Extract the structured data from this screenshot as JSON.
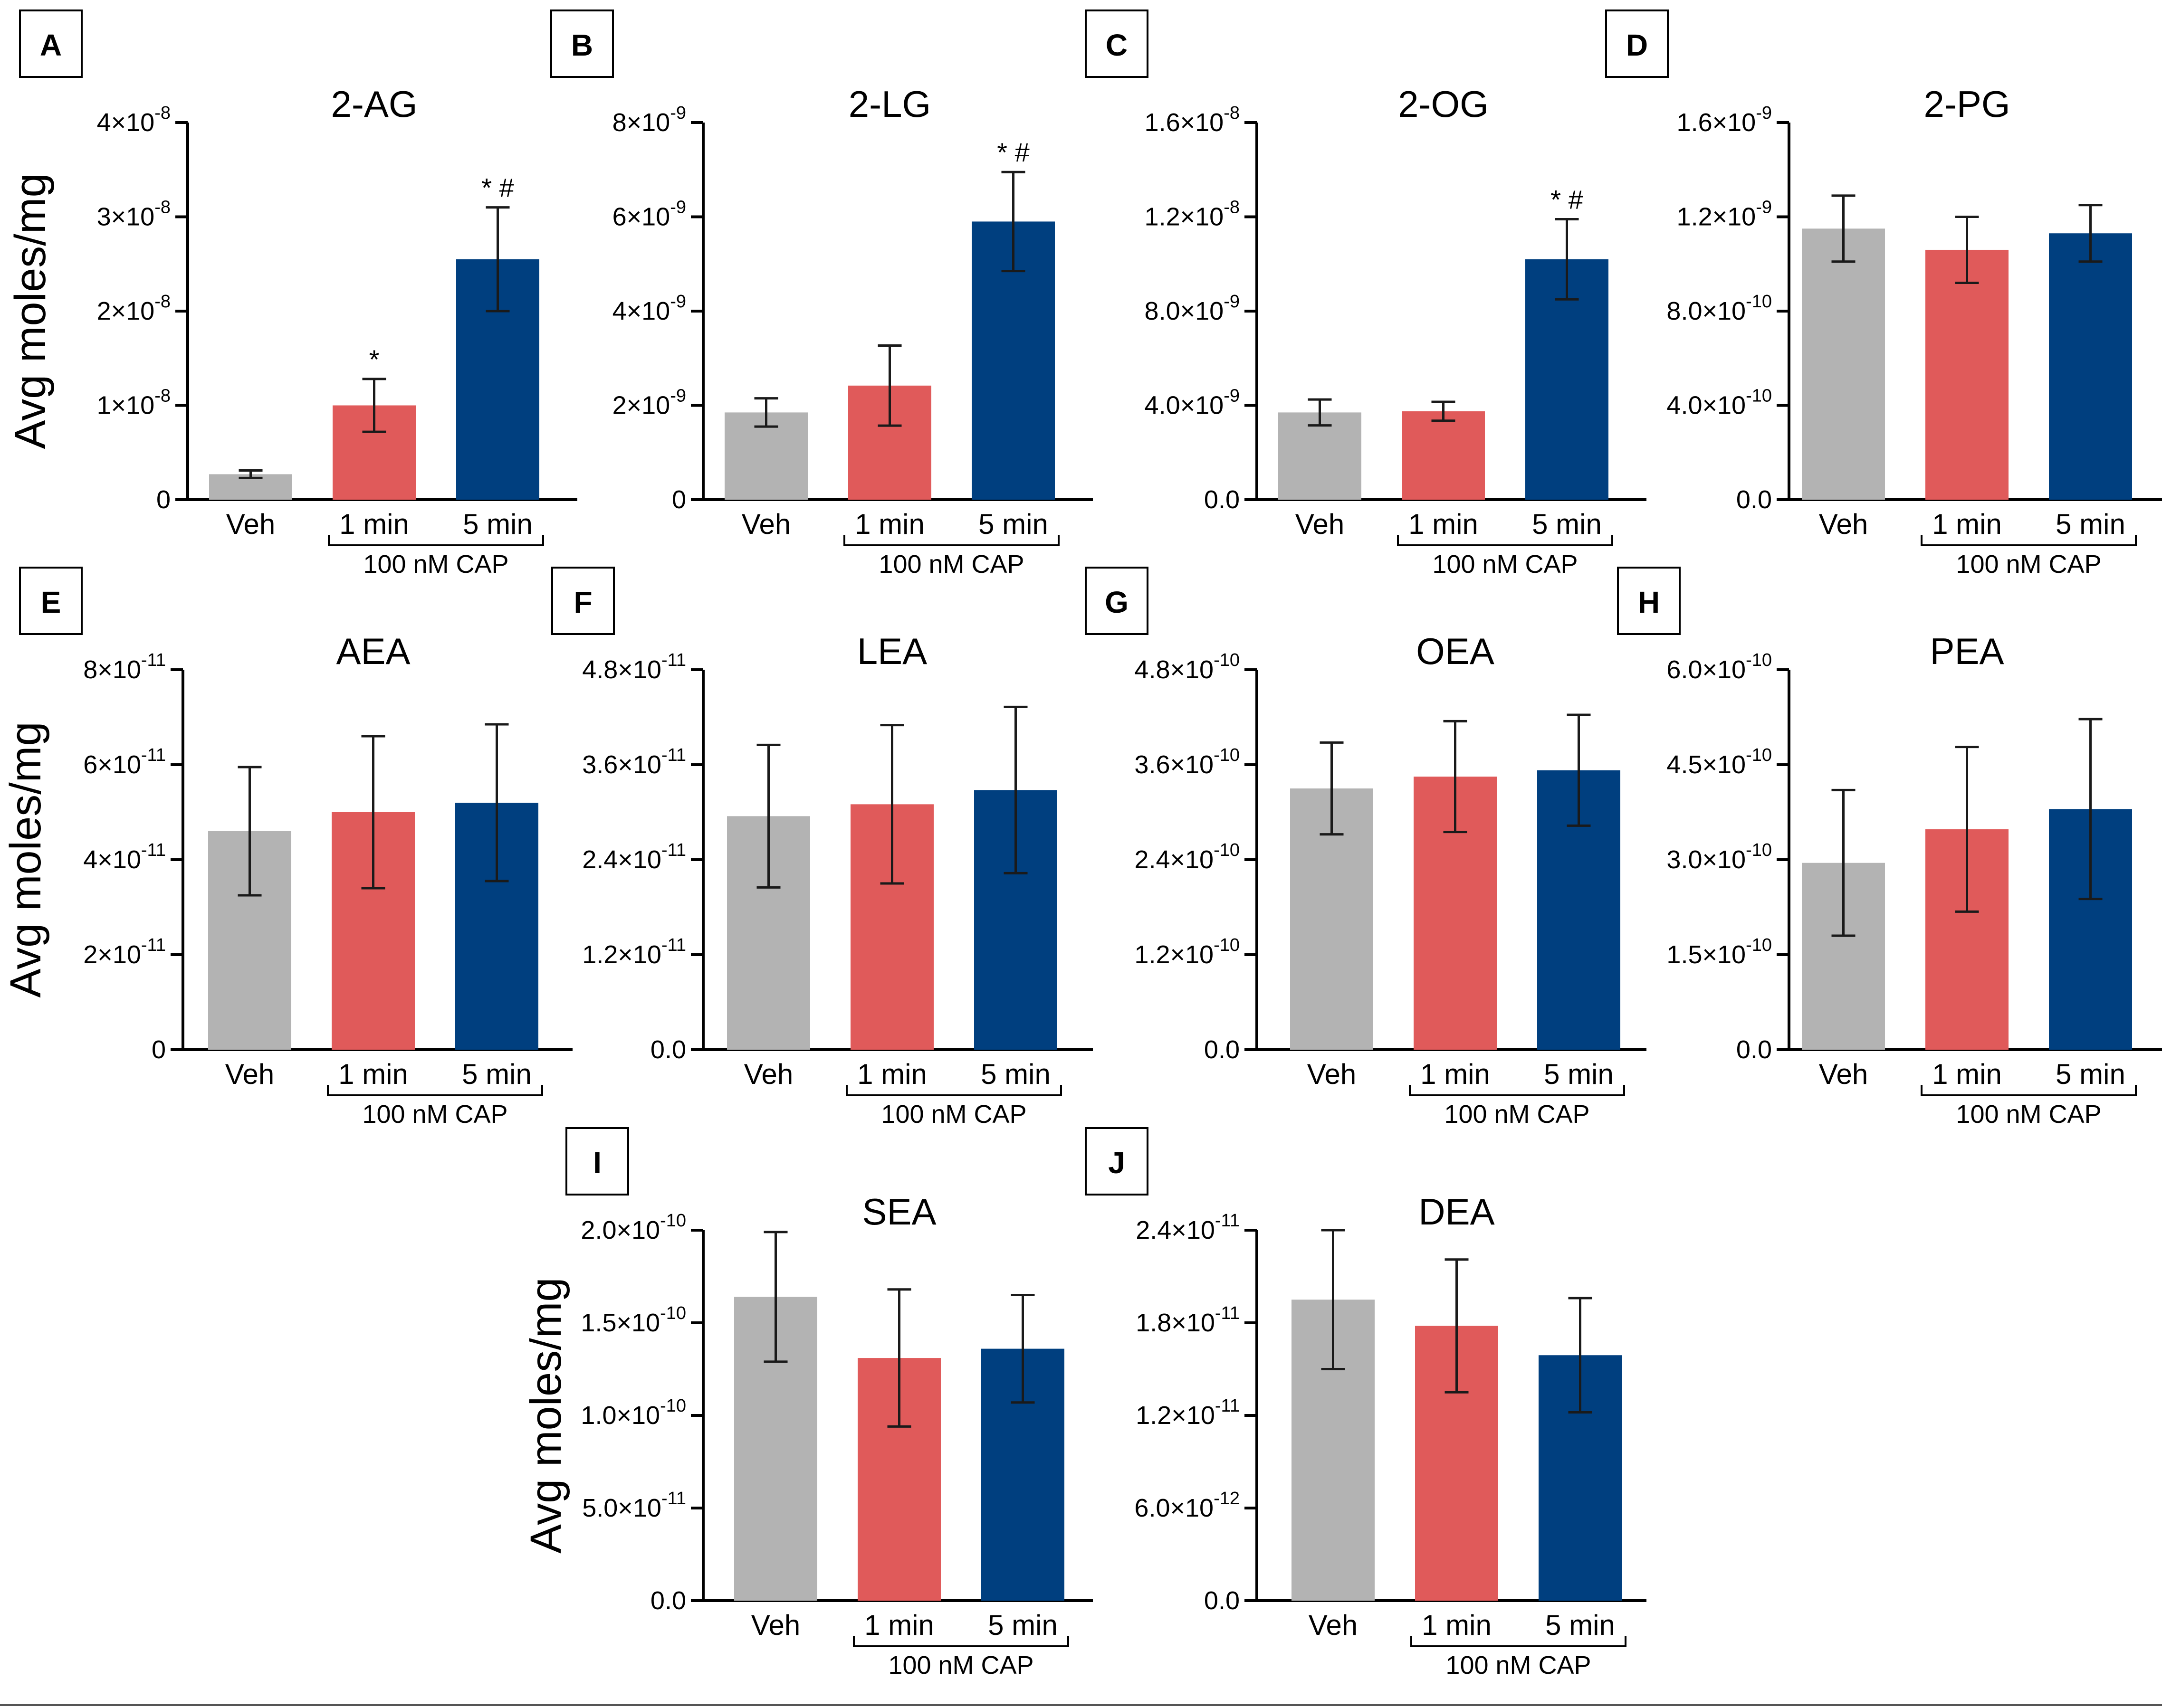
{
  "colors": {
    "veh": "#b3b3b3",
    "min1": "#e05a5a",
    "min5": "#003f7f"
  },
  "ylabel": "Avg moles/mg",
  "bracket_label": "100 nM CAP",
  "chart_data": [
    {
      "panel": "A",
      "type": "bar",
      "title": "2-AG",
      "categories": [
        "Veh",
        "1 min",
        "5 min"
      ],
      "values": [
        2.7e-09,
        1e-08,
        2.55e-08
      ],
      "errors": [
        4e-10,
        2.8e-09,
        5.5e-09
      ],
      "sig": [
        "",
        "*",
        "* #"
      ],
      "ylim": [
        0,
        4e-08
      ],
      "ticks": [
        0,
        1e-08,
        2e-08,
        3e-08,
        4e-08
      ],
      "tick_labels": [
        {
          "m": "0",
          "e": ""
        },
        {
          "m": "1×10",
          "e": "-8"
        },
        {
          "m": "2×10",
          "e": "-8"
        },
        {
          "m": "3×10",
          "e": "-8"
        },
        {
          "m": "4×10",
          "e": "-8"
        }
      ],
      "show_ylabel": true
    },
    {
      "panel": "B",
      "type": "bar",
      "title": "2-LG",
      "categories": [
        "Veh",
        "1 min",
        "5 min"
      ],
      "values": [
        1.85e-09,
        2.42e-09,
        5.9e-09
      ],
      "errors": [
        3e-10,
        8.5e-10,
        1.05e-09
      ],
      "sig": [
        "",
        "",
        "* #"
      ],
      "ylim": [
        0,
        8e-09
      ],
      "ticks": [
        0,
        2e-09,
        4e-09,
        6e-09,
        8e-09
      ],
      "tick_labels": [
        {
          "m": "0",
          "e": ""
        },
        {
          "m": "2×10",
          "e": "-9"
        },
        {
          "m": "4×10",
          "e": "-9"
        },
        {
          "m": "6×10",
          "e": "-9"
        },
        {
          "m": "8×10",
          "e": "-9"
        }
      ],
      "show_ylabel": false
    },
    {
      "panel": "C",
      "type": "bar",
      "title": "2-OG",
      "categories": [
        "Veh",
        "1 min",
        "5 min"
      ],
      "values": [
        3.7e-09,
        3.75e-09,
        1.02e-08
      ],
      "errors": [
        5.5e-10,
        4e-10,
        1.7e-09
      ],
      "sig": [
        "",
        "",
        "* #"
      ],
      "ylim": [
        0,
        1.6e-08
      ],
      "ticks": [
        0,
        4e-09,
        8e-09,
        1.2e-08,
        1.6e-08
      ],
      "tick_labels": [
        {
          "m": "0.0",
          "e": ""
        },
        {
          "m": "4.0×10",
          "e": "-9"
        },
        {
          "m": "8.0×10",
          "e": "-9"
        },
        {
          "m": "1.2×10",
          "e": "-8"
        },
        {
          "m": "1.6×10",
          "e": "-8"
        }
      ],
      "show_ylabel": false
    },
    {
      "panel": "D",
      "type": "bar",
      "title": "2-PG",
      "categories": [
        "Veh",
        "1 min",
        "5 min"
      ],
      "values": [
        1.15e-09,
        1.06e-09,
        1.13e-09
      ],
      "errors": [
        1.4e-10,
        1.4e-10,
        1.2e-10
      ],
      "sig": [
        "",
        "",
        ""
      ],
      "ylim": [
        0,
        1.6e-09
      ],
      "ticks": [
        0,
        4e-10,
        8e-10,
        1.2e-09,
        1.6e-09
      ],
      "tick_labels": [
        {
          "m": "0.0",
          "e": ""
        },
        {
          "m": "4.0×10",
          "e": "-10"
        },
        {
          "m": "8.0×10",
          "e": "-10"
        },
        {
          "m": "1.2×10",
          "e": "-9"
        },
        {
          "m": "1.6×10",
          "e": "-9"
        }
      ],
      "show_ylabel": false
    },
    {
      "panel": "E",
      "type": "bar",
      "title": "AEA",
      "categories": [
        "Veh",
        "1 min",
        "5 min"
      ],
      "values": [
        4.6e-11,
        5e-11,
        5.2e-11
      ],
      "errors": [
        1.35e-11,
        1.6e-11,
        1.65e-11
      ],
      "sig": [
        "",
        "",
        ""
      ],
      "ylim": [
        0,
        8e-11
      ],
      "ticks": [
        0,
        2e-11,
        4e-11,
        6e-11,
        8e-11
      ],
      "tick_labels": [
        {
          "m": "0",
          "e": ""
        },
        {
          "m": "2×10",
          "e": "-11"
        },
        {
          "m": "4×10",
          "e": "-11"
        },
        {
          "m": "6×10",
          "e": "-11"
        },
        {
          "m": "8×10",
          "e": "-11"
        }
      ],
      "show_ylabel": true
    },
    {
      "panel": "F",
      "type": "bar",
      "title": "LEA",
      "categories": [
        "Veh",
        "1 min",
        "5 min"
      ],
      "values": [
        2.95e-11,
        3.1e-11,
        3.28e-11
      ],
      "errors": [
        9e-12,
        1e-11,
        1.05e-11
      ],
      "sig": [
        "",
        "",
        ""
      ],
      "ylim": [
        0,
        4.8e-11
      ],
      "ticks": [
        0,
        1.2e-11,
        2.4e-11,
        3.6e-11,
        4.8e-11
      ],
      "tick_labels": [
        {
          "m": "0.0",
          "e": ""
        },
        {
          "m": "1.2×10",
          "e": "-11"
        },
        {
          "m": "2.4×10",
          "e": "-11"
        },
        {
          "m": "3.6×10",
          "e": "-11"
        },
        {
          "m": "4.8×10",
          "e": "-11"
        }
      ],
      "show_ylabel": false
    },
    {
      "panel": "G",
      "type": "bar",
      "title": "OEA",
      "categories": [
        "Veh",
        "1 min",
        "5 min"
      ],
      "values": [
        3.3e-10,
        3.45e-10,
        3.53e-10
      ],
      "errors": [
        5.8e-11,
        7e-11,
        7e-11
      ],
      "sig": [
        "",
        "",
        ""
      ],
      "ylim": [
        0,
        4.8e-10
      ],
      "ticks": [
        0,
        1.2e-10,
        2.4e-10,
        3.6e-10,
        4.8e-10
      ],
      "tick_labels": [
        {
          "m": "0.0",
          "e": ""
        },
        {
          "m": "1.2×10",
          "e": "-10"
        },
        {
          "m": "2.4×10",
          "e": "-10"
        },
        {
          "m": "3.6×10",
          "e": "-10"
        },
        {
          "m": "4.8×10",
          "e": "-10"
        }
      ],
      "show_ylabel": false
    },
    {
      "panel": "H",
      "type": "bar",
      "title": "PEA",
      "categories": [
        "Veh",
        "1 min",
        "5 min"
      ],
      "values": [
        2.95e-10,
        3.48e-10,
        3.8e-10
      ],
      "errors": [
        1.15e-10,
        1.3e-10,
        1.42e-10
      ],
      "sig": [
        "",
        "",
        ""
      ],
      "ylim": [
        0,
        6e-10
      ],
      "ticks": [
        0,
        1.5e-10,
        3e-10,
        4.5e-10,
        6e-10
      ],
      "tick_labels": [
        {
          "m": "0.0",
          "e": ""
        },
        {
          "m": "1.5×10",
          "e": "-10"
        },
        {
          "m": "3.0×10",
          "e": "-10"
        },
        {
          "m": "4.5×10",
          "e": "-10"
        },
        {
          "m": "6.0×10",
          "e": "-10"
        }
      ],
      "show_ylabel": false
    },
    {
      "panel": "I",
      "type": "bar",
      "title": "SEA",
      "categories": [
        "Veh",
        "1 min",
        "5 min"
      ],
      "values": [
        1.64e-10,
        1.31e-10,
        1.36e-10
      ],
      "errors": [
        3.5e-11,
        3.7e-11,
        2.9e-11
      ],
      "sig": [
        "",
        "",
        ""
      ],
      "ylim": [
        0,
        2e-10
      ],
      "ticks": [
        0,
        5e-11,
        1e-10,
        1.5e-10,
        2e-10
      ],
      "tick_labels": [
        {
          "m": "0.0",
          "e": ""
        },
        {
          "m": "5.0×10",
          "e": "-11"
        },
        {
          "m": "1.0×10",
          "e": "-10"
        },
        {
          "m": "1.5×10",
          "e": "-10"
        },
        {
          "m": "2.0×10",
          "e": "-10"
        }
      ],
      "show_ylabel": true
    },
    {
      "panel": "J",
      "type": "bar",
      "title": "DEA",
      "categories": [
        "Veh",
        "1 min",
        "5 min"
      ],
      "values": [
        1.95e-11,
        1.78e-11,
        1.59e-11
      ],
      "errors": [
        4.5e-12,
        4.3e-12,
        3.7e-12
      ],
      "sig": [
        "",
        "",
        ""
      ],
      "ylim": [
        0,
        2.4e-11
      ],
      "ticks": [
        0,
        6e-12,
        1.2e-11,
        1.8e-11,
        2.4e-11
      ],
      "tick_labels": [
        {
          "m": "0.0",
          "e": ""
        },
        {
          "m": "6.0×10",
          "e": "-12"
        },
        {
          "m": "1.2×10",
          "e": "-11"
        },
        {
          "m": "1.8×10",
          "e": "-11"
        },
        {
          "m": "2.4×10",
          "e": "-11"
        }
      ],
      "show_ylabel": false
    }
  ]
}
